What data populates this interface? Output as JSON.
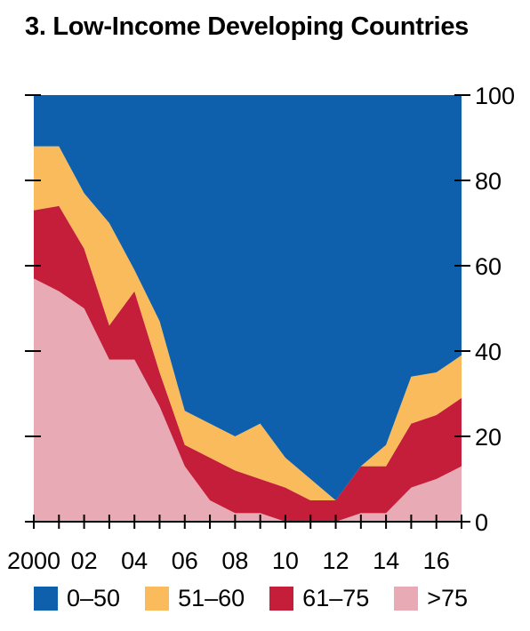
{
  "title": "3. Low-Income Developing Countries",
  "colors": {
    "0-50": "#0e5fac",
    "51-60": "#f9bb5c",
    "61-75": "#c41e3a",
    ">75": "#e8aab5"
  },
  "chart_data": {
    "type": "area",
    "stacked": true,
    "x": [
      2000,
      2001,
      2002,
      2003,
      2004,
      2005,
      2006,
      2007,
      2008,
      2009,
      2010,
      2011,
      2012,
      2013,
      2014,
      2015,
      2016,
      2017
    ],
    "x_tick_labels": [
      {
        "x": 2000,
        "label": "2000"
      },
      {
        "x": 2002,
        "label": "02"
      },
      {
        "x": 2004,
        "label": "04"
      },
      {
        "x": 2006,
        "label": "06"
      },
      {
        "x": 2008,
        "label": "08"
      },
      {
        "x": 2010,
        "label": "10"
      },
      {
        "x": 2012,
        "label": "12"
      },
      {
        "x": 2014,
        "label": "14"
      },
      {
        "x": 2016,
        "label": "16"
      }
    ],
    "y_tick_labels": [
      "0",
      "20",
      "40",
      "60",
      "80",
      "100"
    ],
    "ylim": [
      0,
      100
    ],
    "series": [
      {
        "name": ">75",
        "color_key": ">75",
        "values": [
          57,
          54,
          50,
          38,
          38,
          27,
          13,
          5,
          2,
          2,
          0,
          0,
          0,
          2,
          2,
          8,
          10,
          13
        ]
      },
      {
        "name": "61–75",
        "color_key": "61-75",
        "values": [
          16,
          20,
          14,
          8,
          16,
          8,
          5,
          10,
          10,
          8,
          8,
          5,
          5,
          11,
          11,
          15,
          15,
          16
        ]
      },
      {
        "name": "51–60",
        "color_key": "51-60",
        "values": [
          15,
          14,
          13,
          24,
          5,
          12,
          8,
          8,
          8,
          13,
          7,
          5,
          0,
          0,
          5,
          11,
          10,
          10
        ]
      },
      {
        "name": "0–50",
        "color_key": "0-50",
        "values": [
          12,
          12,
          23,
          30,
          41,
          53,
          74,
          77,
          80,
          77,
          85,
          90,
          95,
          87,
          82,
          66,
          65,
          61
        ]
      }
    ],
    "legend_position": "bottom",
    "grid": false
  },
  "legend": [
    {
      "label": "0–50",
      "color_key": "0-50"
    },
    {
      "label": "51–60",
      "color_key": "51-60"
    },
    {
      "label": "61–75",
      "color_key": "61-75"
    },
    {
      "label": ">75",
      "color_key": ">75"
    }
  ]
}
